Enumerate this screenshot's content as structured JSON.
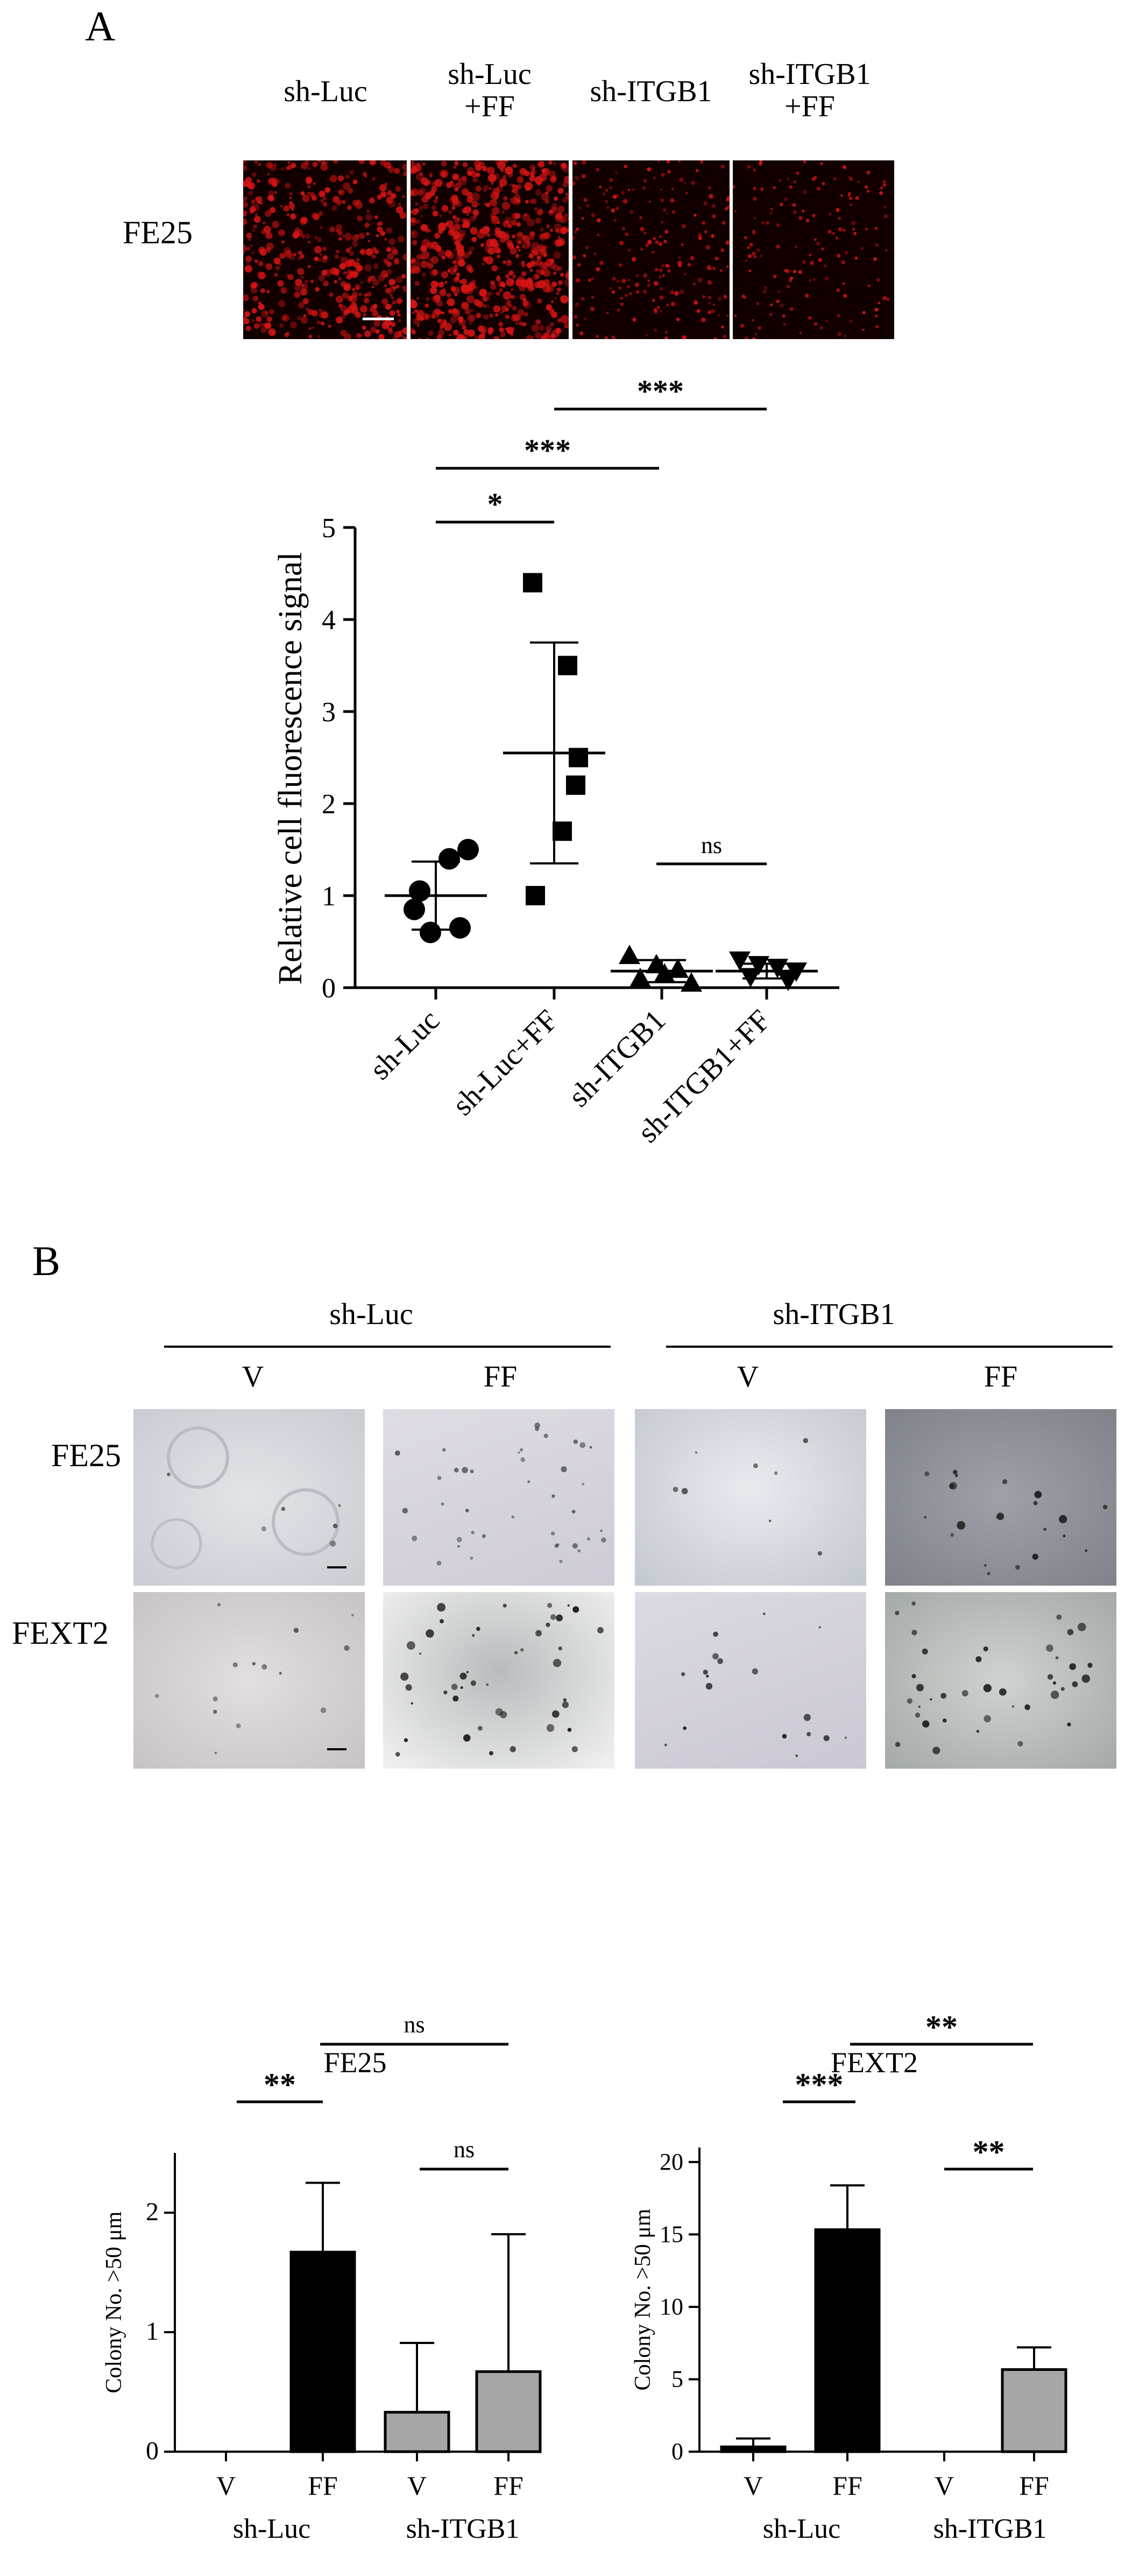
{
  "panel_a": {
    "letter": "A",
    "col_labels": [
      "sh-Luc",
      "sh-Luc\n+FF",
      "sh-ITGB1",
      "sh-ITGB1\n+FF"
    ],
    "row_label": "FE25"
  },
  "panel_b": {
    "letter": "B",
    "group_labels": [
      "sh-Luc",
      "sh-ITGB1"
    ],
    "col_labels": [
      "V",
      "FF",
      "V",
      "FF"
    ],
    "row_labels": [
      "FE25",
      "FEXT2"
    ]
  },
  "colors": {
    "fluorescence": "#d81414",
    "bar_shluc": "#000000",
    "bar_shitgb1": "#a6a6a6"
  },
  "chart_data": [
    {
      "type": "scatter",
      "title": "",
      "ylabel": "Relative cell fluorescence signal",
      "ylim": [
        0,
        5
      ],
      "yticks": [
        0,
        1,
        2,
        3,
        4,
        5
      ],
      "categories": [
        "sh-Luc",
        "sh-Luc+FF",
        "sh-ITGB1",
        "sh-ITGB1+FF"
      ],
      "markers": [
        "circle",
        "square",
        "triangle-up",
        "triangle-down"
      ],
      "points": [
        [
          1.5,
          1.4,
          1.05,
          0.85,
          0.65,
          0.6
        ],
        [
          4.4,
          3.5,
          2.5,
          2.2,
          1.7,
          1.0
        ],
        [
          0.35,
          0.25,
          0.2,
          0.15,
          0.1,
          0.05
        ],
        [
          0.3,
          0.25,
          0.22,
          0.18,
          0.12,
          0.08
        ]
      ],
      "mean": [
        1.0,
        2.55,
        0.18,
        0.18
      ],
      "sd": [
        0.37,
        1.2,
        0.12,
        0.08
      ],
      "significance": [
        {
          "from": 0,
          "to": 1,
          "label": "*"
        },
        {
          "from": 0,
          "to": 2,
          "label": "***"
        },
        {
          "from": 1,
          "to": 3,
          "label": "***"
        },
        {
          "from": 2,
          "to": 3,
          "label": "ns"
        }
      ],
      "grid": false
    },
    {
      "type": "bar",
      "title": "FE25",
      "ylabel": "Colony No. >50 μm",
      "ylim": [
        0,
        2.5
      ],
      "yticks": [
        0,
        1,
        2
      ],
      "categories": [
        "V",
        "FF",
        "V",
        "FF"
      ],
      "groups": [
        "sh-Luc",
        "sh-ITGB1"
      ],
      "values": [
        0,
        1.67,
        0.33,
        0.67
      ],
      "errors": [
        0,
        0.58,
        0.58,
        1.15
      ],
      "bar_groups": [
        0,
        0,
        1,
        1
      ],
      "significance": [
        {
          "from": 0,
          "to": 1,
          "label": "**"
        },
        {
          "from": 1,
          "to": 3,
          "label": "ns"
        },
        {
          "from": 2,
          "to": 3,
          "label": "ns"
        }
      ],
      "grid": false
    },
    {
      "type": "bar",
      "title": "FEXT2",
      "ylabel": "Colony No. >50 μm",
      "ylim": [
        0,
        21
      ],
      "yticks": [
        0,
        5,
        10,
        15,
        20
      ],
      "categories": [
        "V",
        "FF",
        "V",
        "FF"
      ],
      "groups": [
        "sh-Luc",
        "sh-ITGB1"
      ],
      "values": [
        0.33,
        15.33,
        0,
        5.67
      ],
      "errors": [
        0.58,
        3.06,
        0,
        1.53
      ],
      "bar_groups": [
        0,
        0,
        1,
        1
      ],
      "significance": [
        {
          "from": 0,
          "to": 1,
          "label": "***"
        },
        {
          "from": 1,
          "to": 3,
          "label": "**"
        },
        {
          "from": 2,
          "to": 3,
          "label": "**"
        }
      ],
      "grid": false
    }
  ]
}
